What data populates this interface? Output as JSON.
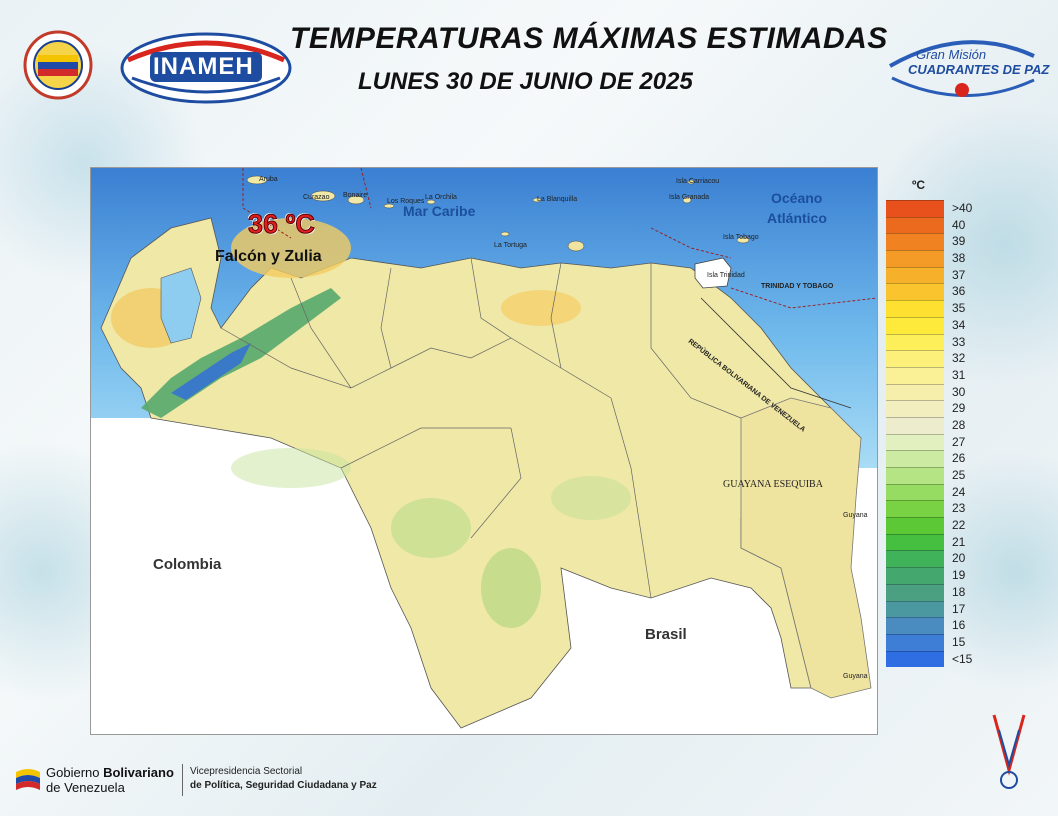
{
  "header": {
    "title": "TEMPERATURAS MÁXIMAS ESTIMADAS",
    "subtitle": "LUNES 30 DE JUNIO DE 2025",
    "inameh_logo_text": "INAMEH",
    "gran_mision_line1": "Gran Misión",
    "gran_mision_line2": "CUADRANTES DE PAZ"
  },
  "map": {
    "sea_labels": [
      "Mar Caribe",
      "Océano",
      "Atlántico"
    ],
    "countries": [
      "Colombia",
      "Brasil"
    ],
    "region_label": "GUAYANA ESEQUIBA",
    "islands": [
      "Aruba",
      "Curazao",
      "Bonaire",
      "Los Roques",
      "La Orchila",
      "La Blanquilla",
      "La Tortuga",
      "Isla Carriacou",
      "Isla Granada",
      "Isla Tobago",
      "Isla Trinidad"
    ],
    "borders": [
      "TRINIDAD Y TOBAGO",
      "REPÚBLICA BOLIVARIANA DE VENEZUELA"
    ],
    "places": [
      "Guyana",
      "Guyana"
    ],
    "highlight": {
      "temperature": "36 ºC",
      "states": "Falcón y  Zulia"
    }
  },
  "legend": {
    "unit": "ºC",
    "items": [
      {
        "label": ">40",
        "color": "#e8501c"
      },
      {
        "label": "40",
        "color": "#ec6a1e"
      },
      {
        "label": "39",
        "color": "#f08222"
      },
      {
        "label": "38",
        "color": "#f49a26"
      },
      {
        "label": "37",
        "color": "#f7b02a"
      },
      {
        "label": "36",
        "color": "#fac42e"
      },
      {
        "label": "35",
        "color": "#fde030"
      },
      {
        "label": " 34",
        "color": "#fdea3a"
      },
      {
        "label": "33",
        "color": "#fdef5a"
      },
      {
        "label": "32",
        "color": "#fcf07a"
      },
      {
        "label": "31",
        "color": "#faf096"
      },
      {
        "label": "30",
        "color": "#f6efac"
      },
      {
        "label": "29",
        "color": "#f2eebe"
      },
      {
        "label": "28",
        "color": "#edeccc"
      },
      {
        "label": "27",
        "color": "#e2f0c0"
      },
      {
        "label": "26",
        "color": "#cdeaa2"
      },
      {
        "label": "25",
        "color": "#b4e484"
      },
      {
        "label": "24",
        "color": "#96dc62"
      },
      {
        "label": "23",
        "color": "#78d244"
      },
      {
        "label": "22",
        "color": "#5cc836"
      },
      {
        "label": "21",
        "color": "#46be40"
      },
      {
        "label": "20",
        "color": "#40b25a"
      },
      {
        "label": "19",
        "color": "#44a86e"
      },
      {
        "label": "18",
        "color": "#4aa080"
      },
      {
        "label": "17",
        "color": "#4c98a0"
      },
      {
        "label": "16",
        "color": "#4a8cc0"
      },
      {
        "label": "15",
        "color": "#3e7ed6"
      },
      {
        "label": "<15",
        "color": "#2f6ee2"
      }
    ]
  },
  "footer": {
    "gob_line1_a": "Gobierno ",
    "gob_line1_b": "Bolivariano",
    "gob_line2": "de Venezuela",
    "vp_line1": "Vicepresidencia Sectorial",
    "vp_line2": "de Política, Seguridad Ciudadana y Paz"
  }
}
